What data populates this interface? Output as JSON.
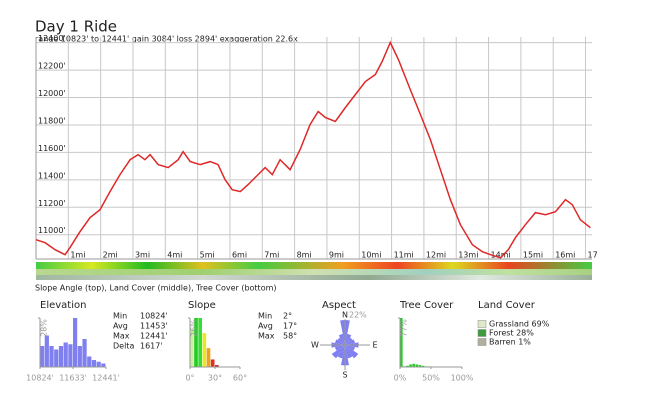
{
  "title": "Day 1 Ride",
  "subtitle": "range 10823' to 12441'  gain 3084'  loss 2894'  exaggeration 22.6x",
  "strip_caption": "Slope Angle (top), Land Cover (middle), Tree Cover (bottom)",
  "land_cover": {
    "title": "Land Cover",
    "items": [
      {
        "label": "Grassland 69%",
        "color": "#dfe9c8"
      },
      {
        "label": "Forest 28%",
        "color": "#3d9a3d"
      },
      {
        "label": "Barren 1%",
        "color": "#b0b0a0"
      }
    ]
  },
  "chart_data": [
    {
      "type": "line",
      "color": "#e02828",
      "x": [
        0,
        0.28,
        0.59,
        0.9,
        1.05,
        1.36,
        1.67,
        1.98,
        2.29,
        2.6,
        2.91,
        3.16,
        3.37,
        3.53,
        3.78,
        4.09,
        4.4,
        4.55,
        4.77,
        5.08,
        5.39,
        5.63,
        5.85,
        6.07,
        6.32,
        6.56,
        6.87,
        7.09,
        7.31,
        7.55,
        7.86,
        8.17,
        8.48,
        8.73,
        8.95,
        9.26,
        9.57,
        9.88,
        10.19,
        10.5,
        10.71,
        10.96,
        11.21,
        11.58,
        11.89,
        12.2,
        12.51,
        12.82,
        13.13,
        13.5,
        13.81,
        14.06,
        14.37,
        14.61,
        14.83,
        15.14,
        15.45,
        15.76,
        16.07,
        16.38,
        16.59,
        16.84,
        17.15
      ],
      "values": [
        10964,
        10942,
        10891,
        10854,
        10905,
        11022,
        11124,
        11182,
        11314,
        11438,
        11547,
        11584,
        11547,
        11584,
        11511,
        11489,
        11547,
        11606,
        11533,
        11511,
        11533,
        11511,
        11401,
        11328,
        11314,
        11365,
        11438,
        11489,
        11438,
        11547,
        11474,
        11620,
        11803,
        11898,
        11854,
        11825,
        11927,
        12022,
        12117,
        12168,
        12263,
        12401,
        12277,
        12058,
        11876,
        11693,
        11474,
        11255,
        11073,
        10927,
        10876,
        10854,
        10832,
        10891,
        10978,
        11073,
        11161,
        11146,
        11168,
        11255,
        11219,
        11109,
        11051
      ],
      "xlim": [
        0,
        17.2
      ],
      "xticks": [
        {
          "value": 1,
          "label": "1mi"
        },
        {
          "value": 2,
          "label": "2mi"
        },
        {
          "value": 3,
          "label": "3mi"
        },
        {
          "value": 4,
          "label": "4mi"
        },
        {
          "value": 5,
          "label": "5mi"
        },
        {
          "value": 6,
          "label": "6mi"
        },
        {
          "value": 7,
          "label": "7mi"
        },
        {
          "value": 8,
          "label": "8mi"
        },
        {
          "value": 9,
          "label": "9mi"
        },
        {
          "value": 10,
          "label": "10mi"
        },
        {
          "value": 11,
          "label": "11mi"
        },
        {
          "value": 12,
          "label": "12mi"
        },
        {
          "value": 13,
          "label": "13mi"
        },
        {
          "value": 14,
          "label": "14mi"
        },
        {
          "value": 15,
          "label": "15mi"
        },
        {
          "value": 16,
          "label": "16mi"
        },
        {
          "value": 17,
          "label": "17"
        }
      ],
      "ylim": [
        10823,
        12441
      ],
      "yticks": [
        {
          "value": 11000,
          "label": "11000'"
        },
        {
          "value": 11200,
          "label": "11200'"
        },
        {
          "value": 11400,
          "label": "11400'"
        },
        {
          "value": 11600,
          "label": "11600'"
        },
        {
          "value": 11800,
          "label": "11800'"
        },
        {
          "value": 12000,
          "label": "12000'"
        },
        {
          "value": 12200,
          "label": "12200'"
        },
        {
          "value": 12400,
          "label": "12400'"
        }
      ],
      "grid": true
    },
    {
      "type": "histogram",
      "title": "Elevation",
      "color": "#7f7ff0",
      "bins": [
        10824,
        10939.5,
        11055,
        11170.5,
        11286,
        11401.5,
        11517,
        11632.5,
        11748,
        11863.5,
        11979,
        12094.5,
        12210,
        12325.5,
        12441
      ],
      "values": [
        12,
        18,
        12,
        10,
        12,
        14,
        13,
        28,
        12,
        16,
        6,
        4,
        3,
        2
      ],
      "xlim": [
        10824,
        12441
      ],
      "xticks": [
        {
          "value": 10824,
          "label": "10824'"
        },
        {
          "value": 11633,
          "label": "11633'"
        },
        {
          "value": 12441,
          "label": "12441'"
        }
      ],
      "ylim": [
        0,
        28
      ],
      "yticks": [
        {
          "value": 28,
          "label": "28%"
        }
      ],
      "stats": [
        {
          "label": "Min",
          "value": "10824'"
        },
        {
          "label": "Avg",
          "value": "11453'"
        },
        {
          "label": "Max",
          "value": "12441'"
        },
        {
          "label": "Delta",
          "value": "1617'"
        }
      ]
    },
    {
      "type": "histogram",
      "title": "Slope",
      "colors": [
        "#c8f0a0",
        "#22cc22",
        "#33dd33",
        "#e8e820",
        "#f0a020",
        "#e03020",
        "#c02020"
      ],
      "bins": [
        0,
        5,
        10,
        15,
        20,
        25,
        30,
        35
      ],
      "values": [
        20,
        26,
        26,
        18,
        10,
        4,
        1
      ],
      "xlim": [
        0,
        60
      ],
      "xticks": [
        {
          "value": 0,
          "label": "0°"
        },
        {
          "value": 30,
          "label": "30°"
        },
        {
          "value": 60,
          "label": "60°"
        }
      ],
      "ylim": [
        0,
        26
      ],
      "yticks": [
        {
          "value": 26,
          "label": "26%"
        }
      ],
      "stats": [
        {
          "label": "Min",
          "value": "2°"
        },
        {
          "label": "Avg",
          "value": "17°"
        },
        {
          "label": "Max",
          "value": "58°"
        }
      ]
    },
    {
      "type": "polar",
      "title": "Aspect",
      "color": "#7f7ff0",
      "directions": [
        "N",
        "E",
        "S",
        "W"
      ],
      "values": [
        22,
        10,
        8,
        9,
        12,
        9,
        14,
        12,
        18,
        12,
        14,
        9,
        12,
        9,
        8,
        10
      ],
      "rlim": [
        0,
        22
      ],
      "rticks": [
        {
          "value": 22,
          "label": "22%"
        }
      ]
    },
    {
      "type": "histogram",
      "title": "Tree Cover",
      "color": "#22cc22",
      "bins": [
        0,
        5,
        10,
        15,
        20,
        25,
        30,
        35,
        40,
        45,
        50
      ],
      "values": [
        77,
        1,
        2,
        4,
        5,
        4,
        3,
        2,
        1,
        1
      ],
      "xlim": [
        0,
        100
      ],
      "xticks": [
        {
          "value": 0,
          "label": "0%"
        },
        {
          "value": 50,
          "label": "50%"
        },
        {
          "value": 100,
          "label": "100%"
        }
      ],
      "ylim": [
        0,
        77
      ],
      "yticks": [
        {
          "value": 77,
          "label": "77%"
        }
      ]
    }
  ]
}
